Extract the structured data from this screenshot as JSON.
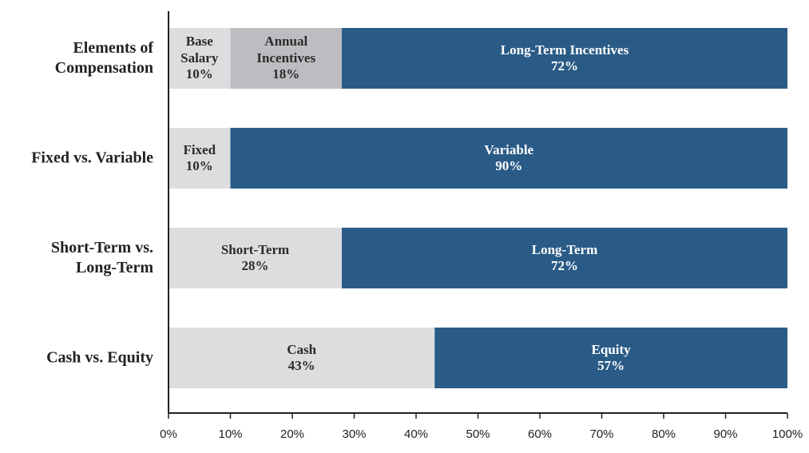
{
  "chart_data": {
    "type": "stacked_bar_h",
    "categories": [
      "Elements of\nCompensation",
      "Fixed vs. Variable",
      "Short-Term vs.\nLong-Term",
      "Cash vs. Equity"
    ],
    "segments": [
      [
        {
          "name": "Base\nSalary",
          "value": 10,
          "value_label": "10%",
          "color": "#dcdddf"
        },
        {
          "name": "Annual\nIncentives",
          "value": 18,
          "value_label": "18%",
          "color": "#bcbdc0"
        },
        {
          "name": "Long-Term Incentives",
          "value": 72,
          "value_label": "72%",
          "color": "#2a5b87"
        }
      ],
      [
        {
          "name": "Fixed",
          "value": 10,
          "value_label": "10%",
          "color": "#dcdddf"
        },
        {
          "name": "Variable",
          "value": 90,
          "value_label": "90%",
          "color": "#2a5b87"
        }
      ],
      [
        {
          "name": "Short-Term",
          "value": 28,
          "value_label": "28%",
          "color": "#dcdddf"
        },
        {
          "name": "Long-Term",
          "value": 72,
          "value_label": "72%",
          "color": "#2a5b87"
        }
      ],
      [
        {
          "name": "Cash",
          "value": 43,
          "value_label": "43%",
          "color": "#dcdddf"
        },
        {
          "name": "Equity",
          "value": 57,
          "value_label": "57%",
          "color": "#2a5b87"
        }
      ]
    ],
    "xlim": [
      0,
      100
    ],
    "xticks": [
      {
        "value": 0,
        "label": "0%"
      },
      {
        "value": 10,
        "label": "10%"
      },
      {
        "value": 20,
        "label": "20%"
      },
      {
        "value": 30,
        "label": "30%"
      },
      {
        "value": 40,
        "label": "40%"
      },
      {
        "value": 50,
        "label": "50%"
      },
      {
        "value": 60,
        "label": "60%"
      },
      {
        "value": 70,
        "label": "70%"
      },
      {
        "value": 80,
        "label": "80%"
      },
      {
        "value": 90,
        "label": "90%"
      },
      {
        "value": 100,
        "label": "100%"
      }
    ]
  }
}
